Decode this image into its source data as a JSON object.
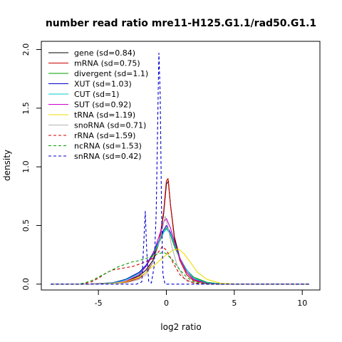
{
  "chart_data": {
    "type": "line",
    "title": "number read ratio mre11-H125.G1.1/rad50.G1.1",
    "xlabel": "log2 ratio",
    "ylabel": "density",
    "xlim": [
      -9.2,
      11.3
    ],
    "ylim": [
      -0.05,
      2.07
    ],
    "xticks": [
      -5,
      0,
      5,
      10
    ],
    "yticks": [
      0.0,
      0.5,
      1.0,
      1.5,
      2.0
    ],
    "xtick_labels": [
      "-5",
      "0",
      "5",
      "10"
    ],
    "ytick_labels": [
      "0.0",
      "0.5",
      "1.0",
      "1.5",
      "2.0"
    ],
    "grid": false,
    "legend_position": "top-left",
    "series": [
      {
        "name": "gene (sd=0.84)",
        "color": "#000000",
        "dash": "solid",
        "points": [
          [
            -8.5,
            0
          ],
          [
            -6,
            0
          ],
          [
            -4,
            0.005
          ],
          [
            -3,
            0.02
          ],
          [
            -2,
            0.07
          ],
          [
            -1.5,
            0.12
          ],
          [
            -1,
            0.2
          ],
          [
            -0.5,
            0.38
          ],
          [
            -0.2,
            0.6
          ],
          [
            0,
            0.85
          ],
          [
            0.15,
            0.88
          ],
          [
            0.3,
            0.68
          ],
          [
            0.6,
            0.4
          ],
          [
            1,
            0.22
          ],
          [
            1.5,
            0.1
          ],
          [
            2,
            0.04
          ],
          [
            3,
            0.008
          ],
          [
            4,
            0.001
          ],
          [
            6,
            0
          ],
          [
            10.5,
            0
          ]
        ]
      },
      {
        "name": "mRNA (sd=0.75)",
        "color": "#cc0000",
        "dash": "solid",
        "points": [
          [
            -8.5,
            0
          ],
          [
            -6,
            0
          ],
          [
            -4,
            0.003
          ],
          [
            -3,
            0.015
          ],
          [
            -2,
            0.05
          ],
          [
            -1.5,
            0.1
          ],
          [
            -1,
            0.18
          ],
          [
            -0.5,
            0.38
          ],
          [
            -0.2,
            0.62
          ],
          [
            0,
            0.88
          ],
          [
            0.12,
            0.9
          ],
          [
            0.3,
            0.68
          ],
          [
            0.6,
            0.38
          ],
          [
            1,
            0.2
          ],
          [
            1.5,
            0.08
          ],
          [
            2,
            0.03
          ],
          [
            3,
            0.005
          ],
          [
            4,
            0
          ],
          [
            10.5,
            0
          ]
        ]
      },
      {
        "name": "divergent (sd=1.1)",
        "color": "#00a000",
        "dash": "solid",
        "points": [
          [
            -8.5,
            0
          ],
          [
            -6,
            0
          ],
          [
            -4,
            0.01
          ],
          [
            -3,
            0.04
          ],
          [
            -2,
            0.1
          ],
          [
            -1.5,
            0.16
          ],
          [
            -1,
            0.24
          ],
          [
            -0.5,
            0.36
          ],
          [
            -0.2,
            0.44
          ],
          [
            0,
            0.48
          ],
          [
            0.3,
            0.42
          ],
          [
            0.6,
            0.32
          ],
          [
            1,
            0.22
          ],
          [
            1.5,
            0.12
          ],
          [
            2,
            0.06
          ],
          [
            3,
            0.015
          ],
          [
            4,
            0.003
          ],
          [
            6,
            0
          ],
          [
            10.5,
            0
          ]
        ]
      },
      {
        "name": "XUT (sd=1.03)",
        "color": "#0000cc",
        "dash": "solid",
        "points": [
          [
            -8.5,
            0
          ],
          [
            -6,
            0
          ],
          [
            -4,
            0.01
          ],
          [
            -3,
            0.04
          ],
          [
            -2,
            0.1
          ],
          [
            -1.5,
            0.16
          ],
          [
            -1,
            0.26
          ],
          [
            -0.5,
            0.38
          ],
          [
            -0.2,
            0.46
          ],
          [
            0,
            0.5
          ],
          [
            0.3,
            0.44
          ],
          [
            0.6,
            0.34
          ],
          [
            1,
            0.22
          ],
          [
            1.5,
            0.12
          ],
          [
            2,
            0.05
          ],
          [
            3,
            0.01
          ],
          [
            4,
            0.002
          ],
          [
            6,
            0
          ],
          [
            10.5,
            0
          ]
        ]
      },
      {
        "name": "CUT (sd=1)",
        "color": "#00cccc",
        "dash": "solid",
        "points": [
          [
            -8.5,
            0
          ],
          [
            -6,
            0
          ],
          [
            -4,
            0.008
          ],
          [
            -3,
            0.035
          ],
          [
            -2,
            0.09
          ],
          [
            -1.5,
            0.15
          ],
          [
            -1,
            0.25
          ],
          [
            -0.5,
            0.37
          ],
          [
            -0.2,
            0.44
          ],
          [
            0,
            0.47
          ],
          [
            0.3,
            0.43
          ],
          [
            0.6,
            0.34
          ],
          [
            1,
            0.22
          ],
          [
            1.5,
            0.12
          ],
          [
            2,
            0.05
          ],
          [
            3,
            0.01
          ],
          [
            4,
            0.002
          ],
          [
            6,
            0
          ],
          [
            10.5,
            0
          ]
        ]
      },
      {
        "name": "SUT (sd=0.92)",
        "color": "#cc00cc",
        "dash": "solid",
        "points": [
          [
            -8.5,
            0
          ],
          [
            -6,
            0
          ],
          [
            -4,
            0.005
          ],
          [
            -3,
            0.025
          ],
          [
            -2,
            0.08
          ],
          [
            -1.5,
            0.15
          ],
          [
            -1,
            0.25
          ],
          [
            -0.5,
            0.42
          ],
          [
            -0.2,
            0.53
          ],
          [
            0,
            0.56
          ],
          [
            0.3,
            0.48
          ],
          [
            0.6,
            0.36
          ],
          [
            1,
            0.22
          ],
          [
            1.5,
            0.1
          ],
          [
            2,
            0.04
          ],
          [
            3,
            0.006
          ],
          [
            4,
            0
          ],
          [
            10.5,
            0
          ]
        ]
      },
      {
        "name": "tRNA (sd=1.19)",
        "color": "#eedd00",
        "dash": "solid",
        "points": [
          [
            -8.5,
            0
          ],
          [
            -6,
            0
          ],
          [
            -4,
            0.005
          ],
          [
            -3,
            0.02
          ],
          [
            -2,
            0.06
          ],
          [
            -1.5,
            0.1
          ],
          [
            -1,
            0.15
          ],
          [
            -0.5,
            0.2
          ],
          [
            0,
            0.25
          ],
          [
            0.5,
            0.29
          ],
          [
            0.9,
            0.3
          ],
          [
            1.3,
            0.26
          ],
          [
            1.8,
            0.18
          ],
          [
            2.3,
            0.1
          ],
          [
            3,
            0.04
          ],
          [
            4,
            0.008
          ],
          [
            5,
            0.001
          ],
          [
            6,
            0
          ],
          [
            10.5,
            0
          ]
        ]
      },
      {
        "name": "snoRNA (sd=0.71)",
        "color": "#b4b4b4",
        "dash": "solid",
        "points": [
          [
            -8.5,
            0
          ],
          [
            -6,
            0
          ],
          [
            -4,
            0.002
          ],
          [
            -3,
            0.01
          ],
          [
            -2,
            0.04
          ],
          [
            -1.5,
            0.08
          ],
          [
            -1,
            0.18
          ],
          [
            -0.6,
            0.32
          ],
          [
            -0.3,
            0.46
          ],
          [
            -0.1,
            0.58
          ],
          [
            0.1,
            0.5
          ],
          [
            0.4,
            0.32
          ],
          [
            0.8,
            0.16
          ],
          [
            1.3,
            0.05
          ],
          [
            2,
            0.01
          ],
          [
            3,
            0
          ],
          [
            10.5,
            0
          ]
        ]
      },
      {
        "name": "rRNA (sd=1.59)",
        "color": "#cc0000",
        "dash": "dashed",
        "points": [
          [
            -8.5,
            0
          ],
          [
            -6.5,
            0
          ],
          [
            -6,
            0.005
          ],
          [
            -5.5,
            0.02
          ],
          [
            -5,
            0.05
          ],
          [
            -4.5,
            0.09
          ],
          [
            -4,
            0.12
          ],
          [
            -3.5,
            0.13
          ],
          [
            -3,
            0.14
          ],
          [
            -2.5,
            0.15
          ],
          [
            -2,
            0.17
          ],
          [
            -1.5,
            0.19
          ],
          [
            -1,
            0.22
          ],
          [
            -0.6,
            0.27
          ],
          [
            -0.3,
            0.32
          ],
          [
            0,
            0.29
          ],
          [
            0.5,
            0.18
          ],
          [
            1,
            0.08
          ],
          [
            1.5,
            0.03
          ],
          [
            2,
            0.01
          ],
          [
            3,
            0
          ],
          [
            10.5,
            0
          ]
        ]
      },
      {
        "name": "ncRNA (sd=1.53)",
        "color": "#00a000",
        "dash": "dashed",
        "points": [
          [
            -8.5,
            0
          ],
          [
            -6.5,
            0
          ],
          [
            -6,
            0.01
          ],
          [
            -5.5,
            0.03
          ],
          [
            -5,
            0.06
          ],
          [
            -4.5,
            0.09
          ],
          [
            -4,
            0.12
          ],
          [
            -3.5,
            0.15
          ],
          [
            -3,
            0.17
          ],
          [
            -2.5,
            0.19
          ],
          [
            -2,
            0.2
          ],
          [
            -1.5,
            0.22
          ],
          [
            -1,
            0.24
          ],
          [
            -0.6,
            0.26
          ],
          [
            -0.2,
            0.27
          ],
          [
            0,
            0.26
          ],
          [
            0.5,
            0.2
          ],
          [
            1,
            0.12
          ],
          [
            1.5,
            0.06
          ],
          [
            2,
            0.02
          ],
          [
            3,
            0.005
          ],
          [
            4,
            0
          ],
          [
            10.5,
            0
          ]
        ]
      },
      {
        "name": "snRNA (sd=0.42)",
        "color": "#0000cc",
        "dash": "dashed",
        "points": [
          [
            -8.5,
            0
          ],
          [
            -2.2,
            0
          ],
          [
            -1.8,
            0.02
          ],
          [
            -1.65,
            0.38
          ],
          [
            -1.55,
            0.62
          ],
          [
            -1.45,
            0.3
          ],
          [
            -1.3,
            0.02
          ],
          [
            -1.1,
            0.01
          ],
          [
            -0.9,
            0.15
          ],
          [
            -0.75,
            0.6
          ],
          [
            -0.65,
            1.3
          ],
          [
            -0.55,
            1.97
          ],
          [
            -0.45,
            1.6
          ],
          [
            -0.35,
            0.6
          ],
          [
            -0.25,
            0.08
          ],
          [
            -0.1,
            0
          ],
          [
            10.5,
            0
          ]
        ]
      }
    ]
  }
}
